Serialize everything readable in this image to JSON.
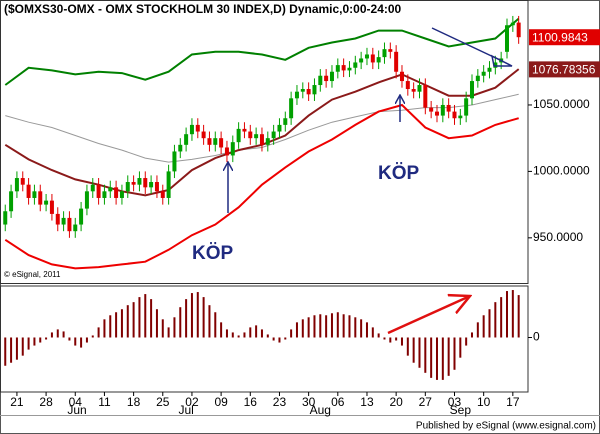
{
  "chart_data": {
    "type": "candlestick",
    "title": "($OMXS30-OMX - OMX STOCKHOLM 30 INDEX,D) Dynamic,0:00-24:00",
    "watermark": "© eSignal, 2011",
    "footer": "Published by eSignal (www.esignal.com)",
    "annotations": [
      "KÖP",
      "KÖP"
    ],
    "categories": [
      null,
      null,
      "21",
      null,
      null,
      null,
      null,
      "28",
      null,
      null,
      null,
      null,
      "04",
      null,
      null,
      null,
      null,
      "11",
      null,
      null,
      null,
      null,
      "18",
      null,
      null,
      null,
      null,
      "25",
      null,
      null,
      null,
      null,
      "02",
      null,
      null,
      null,
      null,
      "09",
      null,
      null,
      null,
      null,
      "16",
      null,
      null,
      null,
      null,
      "23",
      null,
      null,
      null,
      null,
      "30",
      null,
      null,
      null,
      null,
      "06",
      null,
      null,
      null,
      null,
      "13",
      null,
      null,
      null,
      null,
      "20",
      null,
      null,
      null,
      null,
      "27",
      null,
      null,
      null,
      null,
      "03",
      null,
      null,
      null,
      null,
      "10",
      null,
      null,
      null,
      null,
      "17",
      null
    ],
    "month_ticks": [
      {
        "value": 12.3,
        "label": "Jun"
      },
      {
        "value": 31,
        "label": "Jul"
      },
      {
        "value": 54,
        "label": "Aug"
      },
      {
        "value": 78,
        "label": "Sep"
      }
    ],
    "xlim": [
      -0.9,
      89.6
    ],
    "ylim": [
      916,
      1129
    ],
    "yticks": [
      {
        "value": 950,
        "label": "950.0000"
      },
      {
        "value": 1000,
        "label": "1000.0000"
      },
      {
        "value": 1050,
        "label": "1050.0000"
      }
    ],
    "up_color": "#00a000",
    "down_color": "#e00000",
    "open": [
      960,
      970,
      985,
      995,
      990,
      980,
      985,
      975,
      978,
      968,
      960,
      965,
      955,
      960,
      972,
      985,
      990,
      980,
      985,
      988,
      980,
      985,
      992,
      990,
      995,
      988,
      992,
      985,
      980,
      1000,
      1015,
      1020,
      1028,
      1035,
      1030,
      1025,
      1020,
      1025,
      1018,
      1012,
      1022,
      1032,
      1030,
      1025,
      1028,
      1020,
      1025,
      1030,
      1035,
      1040,
      1055,
      1060,
      1062,
      1058,
      1065,
      1072,
      1068,
      1075,
      1080,
      1076,
      1078,
      1082,
      1085,
      1088,
      1082,
      1086,
      1092,
      1090,
      1075,
      1068,
      1062,
      1060,
      1065,
      1048,
      1045,
      1042,
      1050,
      1045,
      1040,
      1042,
      1055,
      1068,
      1072,
      1075,
      1078,
      1082,
      1090,
      1110,
      1112
    ],
    "high": [
      975,
      990,
      1000,
      1000,
      995,
      990,
      990,
      983,
      983,
      973,
      970,
      970,
      965,
      977,
      990,
      995,
      995,
      990,
      993,
      993,
      990,
      997,
      997,
      1000,
      1000,
      997,
      997,
      990,
      1005,
      1020,
      1025,
      1033,
      1040,
      1040,
      1035,
      1030,
      1030,
      1030,
      1023,
      1027,
      1037,
      1037,
      1035,
      1033,
      1033,
      1030,
      1035,
      1040,
      1045,
      1060,
      1065,
      1067,
      1067,
      1070,
      1077,
      1077,
      1080,
      1085,
      1085,
      1083,
      1087,
      1090,
      1093,
      1093,
      1091,
      1097,
      1097,
      1095,
      1080,
      1073,
      1067,
      1070,
      1070,
      1053,
      1050,
      1055,
      1055,
      1050,
      1047,
      1060,
      1073,
      1077,
      1080,
      1083,
      1087,
      1090,
      1115,
      1117,
      1117
    ],
    "low": [
      955,
      965,
      980,
      985,
      975,
      975,
      970,
      970,
      963,
      955,
      955,
      950,
      950,
      955,
      967,
      980,
      975,
      975,
      980,
      975,
      975,
      980,
      985,
      985,
      983,
      983,
      980,
      975,
      975,
      995,
      1010,
      1015,
      1023,
      1025,
      1020,
      1015,
      1015,
      1013,
      1007,
      1007,
      1017,
      1025,
      1020,
      1020,
      1015,
      1015,
      1020,
      1025,
      1030,
      1035,
      1050,
      1055,
      1053,
      1053,
      1060,
      1063,
      1063,
      1070,
      1071,
      1071,
      1073,
      1077,
      1080,
      1077,
      1077,
      1081,
      1085,
      1070,
      1063,
      1057,
      1055,
      1055,
      1043,
      1040,
      1037,
      1037,
      1040,
      1035,
      1035,
      1037,
      1050,
      1063,
      1067,
      1070,
      1073,
      1077,
      1085,
      1105,
      1096
    ],
    "close": [
      970,
      985,
      995,
      990,
      980,
      985,
      975,
      978,
      968,
      960,
      965,
      955,
      960,
      972,
      985,
      990,
      980,
      985,
      988,
      980,
      985,
      992,
      990,
      995,
      988,
      992,
      985,
      980,
      1000,
      1015,
      1020,
      1028,
      1035,
      1030,
      1025,
      1020,
      1025,
      1018,
      1012,
      1022,
      1032,
      1030,
      1025,
      1028,
      1020,
      1025,
      1030,
      1035,
      1040,
      1055,
      1060,
      1062,
      1058,
      1065,
      1072,
      1068,
      1075,
      1080,
      1076,
      1078,
      1082,
      1085,
      1088,
      1082,
      1086,
      1092,
      1090,
      1075,
      1068,
      1062,
      1060,
      1065,
      1048,
      1045,
      1042,
      1050,
      1045,
      1040,
      1042,
      1055,
      1068,
      1072,
      1075,
      1078,
      1082,
      1085,
      1110,
      1112,
      1101
    ],
    "overlays": [
      {
        "color": "#999999",
        "x": [
          0,
          4,
          8,
          12,
          16,
          20,
          24,
          28,
          32,
          36,
          40,
          44,
          48,
          52,
          56,
          60,
          64,
          68,
          72,
          76,
          80,
          84,
          88
        ],
        "values": [
          1042,
          1037,
          1033,
          1027,
          1021,
          1016,
          1010,
          1007,
          1009,
          1012,
          1016,
          1018,
          1024,
          1031,
          1037,
          1041,
          1045,
          1046,
          1048,
          1048,
          1050,
          1054,
          1058
        ]
      },
      {
        "color": "#008000",
        "x": [
          0,
          4,
          8,
          12,
          16,
          20,
          24,
          28,
          32,
          36,
          40,
          44,
          48,
          52,
          56,
          60,
          64,
          68,
          72,
          76,
          80,
          84,
          88
        ],
        "values": [
          1065,
          1078,
          1076,
          1073,
          1075,
          1074,
          1069,
          1075,
          1088,
          1090,
          1090,
          1088,
          1084,
          1093,
          1097,
          1100,
          1106,
          1106,
          1100,
          1094,
          1097,
          1100,
          1115
        ]
      },
      {
        "color": "#ee0000",
        "x": [
          0,
          4,
          8,
          12,
          16,
          20,
          24,
          28,
          32,
          36,
          40,
          44,
          48,
          52,
          56,
          60,
          64,
          68,
          72,
          76,
          80,
          84,
          88
        ],
        "values": [
          948.5,
          937,
          930,
          927,
          928,
          930,
          932,
          941,
          952,
          960,
          973,
          990,
          1003,
          1015,
          1024,
          1035,
          1045,
          1050,
          1033,
          1025,
          1027,
          1035,
          1040
        ]
      },
      {
        "color": "#8b1a1a",
        "x": [
          0,
          4,
          8,
          12,
          16,
          20,
          24,
          28,
          32,
          36,
          40,
          44,
          48,
          52,
          56,
          60,
          64,
          68,
          72,
          76,
          80,
          84,
          88
        ],
        "values": [
          1020,
          1009,
          1001,
          994,
          990,
          985,
          982,
          986,
          1001,
          1010,
          1016,
          1020,
          1027,
          1042,
          1054,
          1060,
          1067,
          1073,
          1065,
          1057,
          1057,
          1063,
          1077
        ]
      }
    ],
    "last_tags": [
      {
        "value": 1100.9843,
        "label": "1100.9843",
        "color": "#e00000"
      },
      {
        "value": 1076.78356,
        "label": "1076.78356",
        "color": "#8b1a1a"
      }
    ],
    "histogram": {
      "type": "bar",
      "color": "#800000",
      "ylim": [
        -54,
        51
      ],
      "yticks": [
        0
      ],
      "values": [
        -28,
        -25,
        -22,
        -18,
        -12,
        -8,
        -5,
        -2,
        5,
        8,
        6,
        -3,
        -8,
        -10,
        -5,
        2,
        10,
        18,
        22,
        25,
        28,
        32,
        35,
        40,
        43,
        38,
        28,
        18,
        10,
        20,
        30,
        38,
        44,
        45,
        40,
        32,
        25,
        15,
        8,
        5,
        2,
        5,
        10,
        12,
        8,
        3,
        -3,
        -5,
        -2,
        8,
        15,
        18,
        20,
        22,
        23,
        22,
        24,
        25,
        23,
        22,
        20,
        18,
        15,
        10,
        4,
        -2,
        -5,
        -3,
        -8,
        -18,
        -25,
        -30,
        -35,
        -40,
        -42,
        -42,
        -38,
        -32,
        -20,
        -8,
        5,
        15,
        22,
        28,
        35,
        40,
        46,
        47,
        42
      ]
    }
  }
}
